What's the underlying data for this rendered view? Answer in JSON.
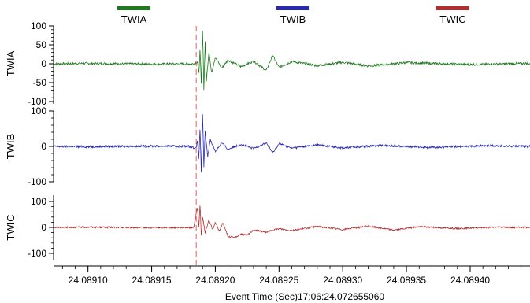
{
  "chart_data": {
    "type": "line",
    "xlabel": "Event Time (Sec)17:06:24.072655060",
    "x_ticks": [
      "24.08910",
      "24.08915",
      "24.08920",
      "24.08925",
      "24.08930",
      "24.08935",
      "24.08940"
    ],
    "x_tick_values": [
      24.0891,
      24.08915,
      24.0892,
      24.08925,
      24.0893,
      24.08935,
      24.0894
    ],
    "xlim": [
      24.089073,
      24.089447
    ],
    "event_marker_x": 24.089185,
    "event_marker_color": "#e06060",
    "legend_placement": "top",
    "grid": false,
    "series": [
      {
        "name": "TWIA",
        "color": "#1f7a1f",
        "ylim": [
          -100,
          100
        ],
        "y_ticks": [
          100,
          50,
          0,
          -50,
          -100
        ],
        "y_tick_labels": [
          "100",
          "50",
          "0",
          "-50",
          "-100"
        ],
        "points": [
          [
            24.089075,
            0
          ],
          [
            24.0891,
            1
          ],
          [
            24.08915,
            -1
          ],
          [
            24.089183,
            0
          ],
          [
            24.089186,
            5
          ],
          [
            24.089187,
            -30
          ],
          [
            24.089188,
            40
          ],
          [
            24.089189,
            -60
          ],
          [
            24.08919,
            95
          ],
          [
            24.089191,
            -70
          ],
          [
            24.089192,
            60
          ],
          [
            24.089193,
            -45
          ],
          [
            24.089195,
            35
          ],
          [
            24.089197,
            -25
          ],
          [
            24.0892,
            18
          ],
          [
            24.089205,
            -12
          ],
          [
            24.08921,
            10
          ],
          [
            24.08922,
            -8
          ],
          [
            24.08923,
            7
          ],
          [
            24.08924,
            -18
          ],
          [
            24.089245,
            22
          ],
          [
            24.08925,
            -10
          ],
          [
            24.08926,
            6
          ],
          [
            24.08928,
            -5
          ],
          [
            24.0893,
            4
          ],
          [
            24.08932,
            -6
          ],
          [
            24.08935,
            3
          ],
          [
            24.0894,
            -2
          ],
          [
            24.089445,
            1
          ]
        ]
      },
      {
        "name": "TWIB",
        "color": "#2a2ab0",
        "ylim": [
          -100,
          100
        ],
        "y_ticks": [
          100,
          0,
          -100
        ],
        "y_tick_labels": [
          "100",
          "0",
          "-100"
        ],
        "points": [
          [
            24.089075,
            0
          ],
          [
            24.0891,
            -1
          ],
          [
            24.08915,
            1
          ],
          [
            24.08918,
            0
          ],
          [
            24.089185,
            -6
          ],
          [
            24.089186,
            20
          ],
          [
            24.089187,
            -40
          ],
          [
            24.089188,
            55
          ],
          [
            24.089189,
            -80
          ],
          [
            24.08919,
            95
          ],
          [
            24.089191,
            -60
          ],
          [
            24.089192,
            45
          ],
          [
            24.089194,
            -30
          ],
          [
            24.089196,
            20
          ],
          [
            24.0892,
            -14
          ],
          [
            24.089205,
            10
          ],
          [
            24.08921,
            -8
          ],
          [
            24.08922,
            6
          ],
          [
            24.08923,
            -6
          ],
          [
            24.08924,
            10
          ],
          [
            24.089245,
            -18
          ],
          [
            24.08925,
            8
          ],
          [
            24.08926,
            -5
          ],
          [
            24.08928,
            4
          ],
          [
            24.0893,
            -4
          ],
          [
            24.08933,
            3
          ],
          [
            24.08937,
            -3
          ],
          [
            24.08941,
            2
          ],
          [
            24.089445,
            0
          ]
        ]
      },
      {
        "name": "TWIC",
        "color": "#b03030",
        "ylim": [
          -100,
          100
        ],
        "y_ticks": [
          100,
          0,
          -100
        ],
        "y_tick_labels": [
          "100",
          "0",
          "-100"
        ],
        "points": [
          [
            24.089075,
            0
          ],
          [
            24.0891,
            1
          ],
          [
            24.08915,
            -1
          ],
          [
            24.089183,
            0
          ],
          [
            24.089186,
            80
          ],
          [
            24.089187,
            -10
          ],
          [
            24.089188,
            95
          ],
          [
            24.089189,
            -40
          ],
          [
            24.08919,
            40
          ],
          [
            24.089192,
            -20
          ],
          [
            24.089195,
            30
          ],
          [
            24.089198,
            -10
          ],
          [
            24.0892,
            20
          ],
          [
            24.089203,
            -15
          ],
          [
            24.089206,
            18
          ],
          [
            24.08921,
            -35
          ],
          [
            24.089215,
            -40
          ],
          [
            24.08922,
            -25
          ],
          [
            24.089225,
            -30
          ],
          [
            24.08923,
            -10
          ],
          [
            24.08924,
            -18
          ],
          [
            24.08925,
            -5
          ],
          [
            24.08926,
            -12
          ],
          [
            24.08928,
            4
          ],
          [
            24.0893,
            -8
          ],
          [
            24.08932,
            5
          ],
          [
            24.08934,
            -10
          ],
          [
            24.08936,
            3
          ],
          [
            24.08939,
            -4
          ],
          [
            24.08942,
            1
          ],
          [
            24.089445,
            0
          ]
        ]
      }
    ]
  }
}
